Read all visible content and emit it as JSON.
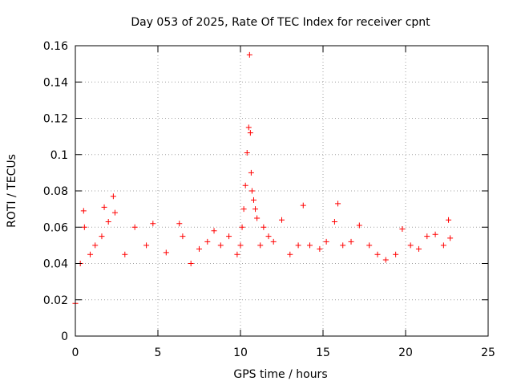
{
  "chart_data": {
    "type": "scatter",
    "title": "Day 053 of 2025, Rate Of TEC Index for receiver cpnt",
    "xlabel": "GPS time / hours",
    "ylabel": "ROTI / TECUs",
    "xlim": [
      0,
      25
    ],
    "ylim": [
      0,
      0.16
    ],
    "xticks": [
      "0",
      "5",
      "10",
      "15",
      "20",
      "25"
    ],
    "yticks": [
      "0",
      "0.02",
      "0.04",
      "0.06",
      "0.08",
      "0.1",
      "0.12",
      "0.14",
      "0.16"
    ],
    "grid": true,
    "marker": "+",
    "color": "#ff0000",
    "series": [
      {
        "x": [
          0.0,
          0.3,
          0.5,
          0.55,
          0.9,
          1.2,
          1.6,
          1.75,
          2.0,
          2.3,
          2.4,
          3.0,
          3.6,
          4.3,
          4.7,
          5.5,
          6.3,
          6.5,
          7.0,
          7.5,
          8.0,
          8.4,
          8.8,
          9.3,
          9.8,
          10.0,
          10.1,
          10.2,
          10.3,
          10.4,
          10.5,
          10.55,
          10.6,
          10.65,
          10.7,
          10.8,
          10.9,
          11.0,
          11.2,
          11.4,
          11.7,
          12.0,
          12.5,
          13.0,
          13.5,
          13.8,
          14.2,
          14.8,
          15.2,
          15.7,
          15.9,
          16.2,
          16.7,
          17.2,
          17.8,
          18.3,
          18.8,
          19.4,
          19.8,
          20.3,
          20.8,
          21.3,
          21.8,
          22.3,
          22.6,
          22.7
        ],
        "y": [
          0.018,
          0.04,
          0.069,
          0.06,
          0.045,
          0.05,
          0.055,
          0.071,
          0.063,
          0.077,
          0.068,
          0.045,
          0.06,
          0.05,
          0.062,
          0.046,
          0.062,
          0.055,
          0.04,
          0.048,
          0.052,
          0.058,
          0.05,
          0.055,
          0.045,
          0.05,
          0.06,
          0.07,
          0.083,
          0.101,
          0.115,
          0.155,
          0.112,
          0.09,
          0.08,
          0.075,
          0.07,
          0.065,
          0.05,
          0.06,
          0.055,
          0.052,
          0.064,
          0.045,
          0.05,
          0.072,
          0.05,
          0.048,
          0.052,
          0.063,
          0.073,
          0.05,
          0.052,
          0.061,
          0.05,
          0.045,
          0.042,
          0.045,
          0.059,
          0.05,
          0.048,
          0.055,
          0.056,
          0.05,
          0.064,
          0.054
        ]
      }
    ]
  }
}
